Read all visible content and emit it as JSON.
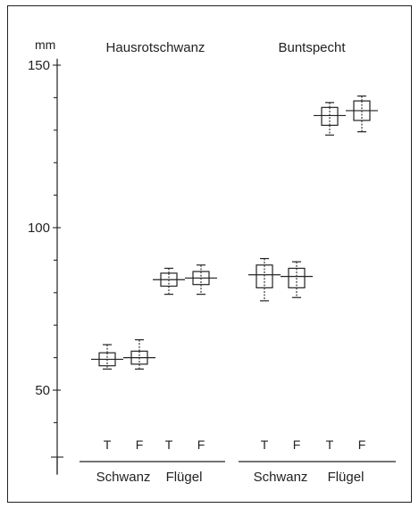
{
  "chart_data": {
    "type": "box",
    "unit_label": "mm",
    "ylim": [
      35,
      152
    ],
    "y_ticks": [
      150,
      100,
      50
    ],
    "minor_tick_step": 10,
    "groups": [
      {
        "name": "Hausrotschwanz",
        "measures": [
          {
            "name": "Schwanz",
            "items": [
              {
                "label": "T",
                "mean": 59.5,
                "box_low": 57.5,
                "box_high": 61.5,
                "min": 56.5,
                "max": 64.0
              },
              {
                "label": "F",
                "mean": 60.0,
                "box_low": 58.0,
                "box_high": 62.0,
                "min": 56.5,
                "max": 65.5
              }
            ]
          },
          {
            "name": "Flügel",
            "items": [
              {
                "label": "T",
                "mean": 84.0,
                "box_low": 82.0,
                "box_high": 86.0,
                "min": 79.5,
                "max": 87.5
              },
              {
                "label": "F",
                "mean": 84.5,
                "box_low": 82.5,
                "box_high": 86.5,
                "min": 79.5,
                "max": 88.5
              }
            ]
          }
        ]
      },
      {
        "name": "Buntspecht",
        "measures": [
          {
            "name": "Schwanz",
            "items": [
              {
                "label": "T",
                "mean": 85.5,
                "box_low": 81.5,
                "box_high": 88.5,
                "min": 77.5,
                "max": 90.5
              },
              {
                "label": "F",
                "mean": 85.0,
                "box_low": 81.5,
                "box_high": 87.5,
                "min": 78.5,
                "max": 89.5
              }
            ]
          },
          {
            "name": "Flügel",
            "items": [
              {
                "label": "T",
                "mean": 134.5,
                "box_low": 131.5,
                "box_high": 137.0,
                "min": 128.5,
                "max": 138.5
              },
              {
                "label": "F",
                "mean": 136.0,
                "box_low": 133.0,
                "box_high": 139.0,
                "min": 129.5,
                "max": 140.5
              }
            ]
          }
        ]
      }
    ]
  }
}
